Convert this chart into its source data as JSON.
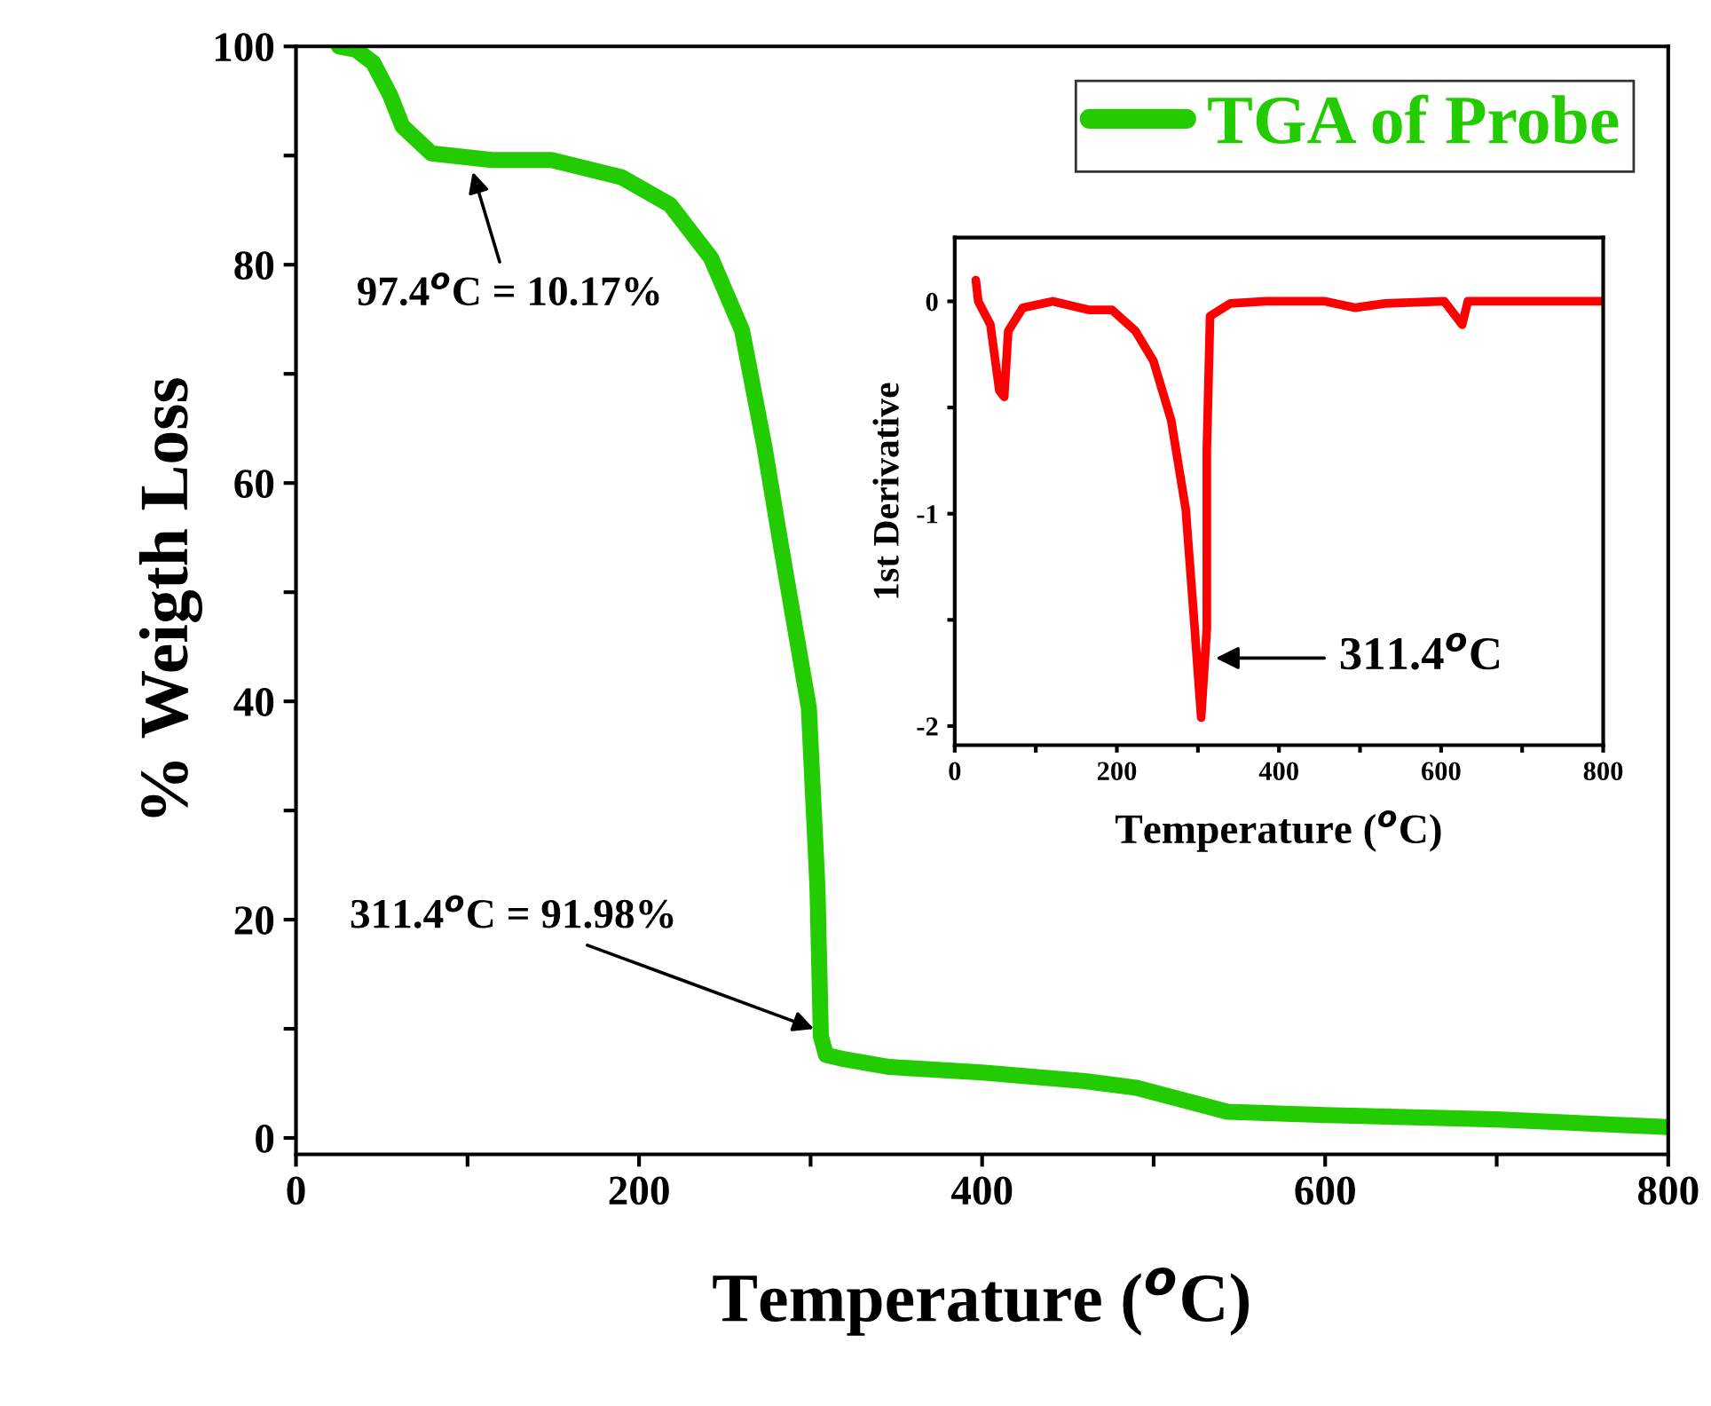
{
  "chart_data": [
    {
      "type": "line",
      "xlabel": "Temperature ($^{o}$C)",
      "ylabel": "% Weigth Loss",
      "x": [
        25,
        35,
        45,
        55,
        62,
        79,
        114,
        149,
        190,
        218,
        242,
        260,
        273,
        283,
        299,
        304,
        306,
        309,
        320,
        346,
        400,
        460,
        490,
        543,
        600,
        700,
        800
      ],
      "series": [
        {
          "name": "TGA of Probe",
          "color": "#22cc00",
          "values": [
            100,
            99.7,
            98.5,
            95.5,
            92.7,
            90.2,
            89.6,
            89.6,
            88,
            85.5,
            80.6,
            74,
            63.4,
            54,
            39.4,
            23,
            9.3,
            7.6,
            7.2,
            6.5,
            6,
            5.2,
            4.6,
            2.4,
            2.1,
            1.7,
            1.0
          ]
        }
      ],
      "xlim": [
        0,
        800
      ],
      "ylim": [
        -1.5,
        100
      ],
      "xticks": [
        0,
        {
          "value": 100,
          "label": null
        },
        200,
        {
          "value": 300,
          "label": null
        },
        400,
        {
          "value": 500,
          "label": null
        },
        600,
        {
          "value": 700,
          "label": null
        },
        800
      ],
      "yticks": [
        0,
        {
          "value": 10,
          "label": null
        },
        20,
        {
          "value": 30,
          "label": null
        },
        40,
        {
          "value": 50,
          "label": null
        },
        60,
        {
          "value": 70,
          "label": null
        },
        80,
        {
          "value": 90,
          "label": null
        },
        100
      ],
      "annotations": [
        {
          "text": "97.4$^{o}$C = 10.17%",
          "x": 103,
          "y": 88.5
        },
        {
          "text": "311.4$^{o}$C = 91.98%",
          "x": 302,
          "y": 10
        }
      ],
      "legend": "top right",
      "grid": false,
      "line_style": "solid",
      "marker": "none"
    },
    {
      "type": "line",
      "xlabel": "Temperature ($^{o}$C)",
      "ylabel": "1st Derivative",
      "x": [
        26,
        29,
        44,
        55,
        61,
        66,
        84,
        121,
        165,
        194,
        223,
        245,
        267,
        285,
        296,
        304,
        311,
        311,
        315,
        340,
        384,
        457,
        494,
        531,
        604,
        626,
        633,
        714,
        800
      ],
      "series": [
        {
          "color": "#ff0000",
          "values": [
            0.1,
            0,
            -0.11,
            -0.42,
            -0.45,
            -0.14,
            -0.03,
            0,
            -0.04,
            -0.04,
            -0.14,
            -0.28,
            -0.56,
            -0.98,
            -1.54,
            -1.96,
            -1.54,
            -0.7,
            -0.07,
            -0.01,
            0,
            0,
            -0.03,
            -0.01,
            0,
            -0.11,
            0,
            0,
            0
          ]
        }
      ],
      "xlim": [
        0,
        800
      ],
      "ylim": [
        -2.09,
        0.3
      ],
      "xticks": [
        0,
        {
          "value": 100,
          "label": null
        },
        200,
        {
          "value": 300,
          "label": null
        },
        400,
        {
          "value": 500,
          "label": null
        },
        600,
        {
          "value": 700,
          "label": null
        },
        800
      ],
      "yticks": [
        {
          "value": -2,
          "label": "-2"
        },
        {
          "value": -1.5,
          "label": null
        },
        {
          "value": -1,
          "label": "-1"
        },
        {
          "value": -0.5,
          "label": null
        },
        0
      ],
      "annotations": [
        {
          "text": "311.4$^{o}$C",
          "x": 322,
          "y": -1.68
        }
      ],
      "grid": false,
      "line_style": "solid",
      "marker": "none"
    }
  ]
}
